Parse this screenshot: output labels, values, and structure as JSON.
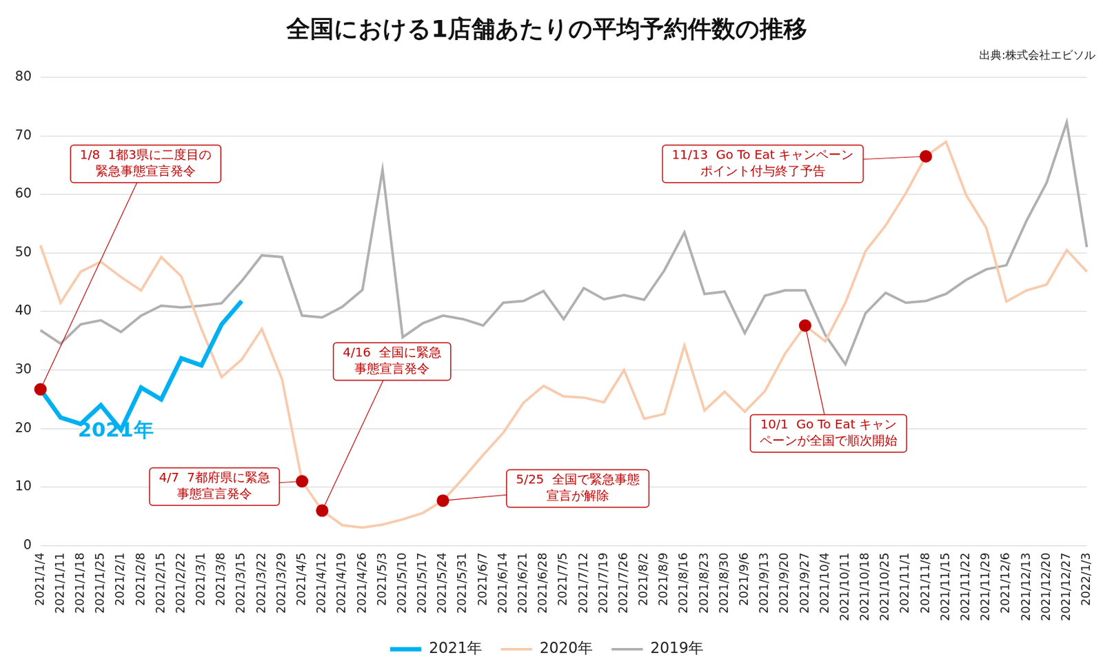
{
  "chart_data": {
    "type": "line",
    "title": "全国における1店舗あたりの平均予約件数の推移",
    "source": "出典:株式会社エビソル",
    "categories": [
      "2021/1/4",
      "2021/1/11",
      "2021/1/18",
      "2021/1/25",
      "2021/2/1",
      "2021/2/8",
      "2021/2/15",
      "2021/2/22",
      "2021/3/1",
      "2021/3/8",
      "2021/3/15",
      "2021/3/22",
      "2021/3/29",
      "2021/4/5",
      "2021/4/12",
      "2021/4/19",
      "2021/4/26",
      "2021/5/3",
      "2021/5/10",
      "2021/5/17",
      "2021/5/24",
      "2021/5/31",
      "2021/6/7",
      "2021/6/14",
      "2021/6/21",
      "2021/6/28",
      "2021/7/5",
      "2021/7/12",
      "2021/7/19",
      "2021/7/26",
      "2021/8/2",
      "2021/8/9",
      "2021/8/16",
      "2021/8/23",
      "2021/8/30",
      "2021/9/6",
      "2021/9/13",
      "2021/9/20",
      "2021/9/27",
      "2021/10/4",
      "2021/10/11",
      "2021/10/18",
      "2021/10/25",
      "2021/11/1",
      "2021/11/8",
      "2021/11/15",
      "2021/11/22",
      "2021/11/29",
      "2021/12/6",
      "2021/12/13",
      "2021/12/20",
      "2021/12/27",
      "2022/1/3"
    ],
    "series": [
      {
        "name": "2019年",
        "color": "#b0b0b0",
        "values": [
          36.8,
          34.5,
          37.8,
          38.5,
          36.5,
          39.3,
          41.0,
          40.7,
          41.0,
          41.4,
          45.2,
          49.6,
          49.3,
          39.3,
          39.0,
          40.8,
          43.7,
          64.2,
          35.6,
          38.0,
          39.3,
          38.7,
          37.6,
          41.5,
          41.8,
          43.5,
          38.7,
          44.0,
          42.1,
          42.8,
          42.0,
          47.0,
          53.5,
          43.0,
          43.4,
          36.3,
          42.7,
          43.6,
          43.6,
          36.0,
          31.0,
          39.7,
          43.2,
          41.5,
          41.8,
          43.0,
          45.4,
          47.2,
          47.9,
          55.5,
          62.0,
          72.3,
          51.0
        ]
      },
      {
        "name": "2020年",
        "color": "#f8cbad",
        "values": [
          51.3,
          41.5,
          46.8,
          48.5,
          45.9,
          43.6,
          49.3,
          46.0,
          37.0,
          28.8,
          31.8,
          37.0,
          28.5,
          11.0,
          6.0,
          3.5,
          3.1,
          3.6,
          4.5,
          5.6,
          7.7,
          11.5,
          15.5,
          19.3,
          24.4,
          27.3,
          25.5,
          25.3,
          24.5,
          30.0,
          21.7,
          22.5,
          34.2,
          23.1,
          26.3,
          22.9,
          26.4,
          32.8,
          37.6,
          34.9,
          41.5,
          50.3,
          54.7,
          60.2,
          66.5,
          69.0,
          59.9,
          54.3,
          41.7,
          43.6,
          44.6,
          50.5,
          46.8
        ]
      },
      {
        "name": "2021年",
        "color": "#00b0f0",
        "values": [
          26.7,
          21.9,
          20.8,
          24.0,
          19.8,
          27.0,
          25.0,
          32.0,
          30.8,
          37.8,
          41.8,
          null,
          null,
          null,
          null,
          null,
          null,
          null,
          null,
          null,
          null,
          null,
          null,
          null,
          null,
          null,
          null,
          null,
          null,
          null,
          null,
          null,
          null,
          null,
          null,
          null,
          null,
          null,
          null,
          null,
          null,
          null,
          null,
          null,
          null,
          null,
          null,
          null,
          null,
          null,
          null,
          null,
          null
        ]
      }
    ],
    "annotations": [
      {
        "x": "2021/1/4",
        "series": "2021年",
        "text": [
          "1/8  1都3県に二度目の",
          "緊急事態宣言発令"
        ]
      },
      {
        "x": "2021/4/5",
        "series": "2020年",
        "text": [
          "4/7  7都府県に緊急",
          "事態宣言発令"
        ]
      },
      {
        "x": "2021/4/12",
        "series": "2020年",
        "text": [
          "4/16  全国に緊急",
          "事態宣言発令"
        ]
      },
      {
        "x": "2021/5/24",
        "series": "2020年",
        "text": [
          "5/25  全国で緊急事態",
          "宣言が解除"
        ]
      },
      {
        "x": "2021/9/27",
        "series": "2020年",
        "text": [
          "10/1  Go To Eat キャン",
          "ペーンが全国で順次開始"
        ]
      },
      {
        "x": "2021/11/8",
        "series": "2020年",
        "text": [
          "11/13  Go To Eat キャンペーン",
          "ポイント付与終了予告"
        ]
      }
    ],
    "ylim": [
      0,
      80
    ],
    "yticks": [
      0,
      10,
      20,
      30,
      40,
      50,
      60,
      70,
      80
    ],
    "grid": true,
    "legend": "bottom"
  }
}
